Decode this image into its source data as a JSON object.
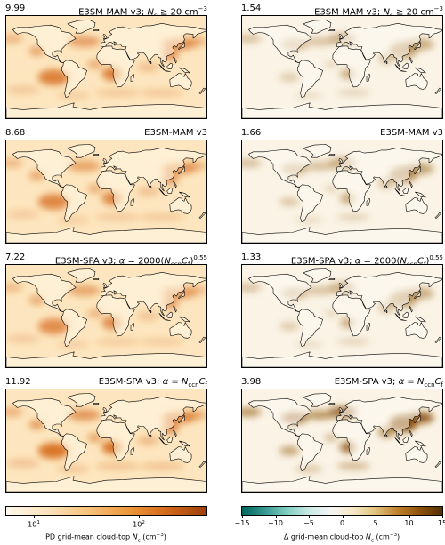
{
  "figure": {
    "panels": [
      {
        "value": "9.99",
        "label": "E3SM-MAM v3; N_c ≥ 20 cm⁻³",
        "column": "left",
        "row": 0,
        "map_type": "absolute",
        "intensity": 0.55
      },
      {
        "value": "1.54",
        "label": "E3SM-MAM v3; N_c ≥ 20 cm⁻³",
        "column": "right",
        "row": 0,
        "map_type": "difference",
        "intensity": 0.25
      },
      {
        "value": "8.68",
        "label": "E3SM-MAM v3",
        "column": "left",
        "row": 1,
        "map_type": "absolute",
        "intensity": 0.5
      },
      {
        "value": "1.66",
        "label": "E3SM-MAM v3",
        "column": "right",
        "row": 1,
        "map_type": "difference",
        "intensity": 0.3
      },
      {
        "value": "7.22",
        "label": "E3SM-SPA v3; α = 2000(N_ccnC_f)^0.55",
        "column": "left",
        "row": 2,
        "map_type": "absolute",
        "intensity": 0.45
      },
      {
        "value": "1.33",
        "label": "E3SM-SPA v3; α = 2000(N_ccnC_f)^0.55",
        "column": "right",
        "row": 2,
        "map_type": "difference",
        "intensity": 0.25
      },
      {
        "value": "11.92",
        "label": "E3SM-SPA v3; α = N_ccnC_f",
        "column": "left",
        "row": 3,
        "map_type": "absolute",
        "intensity": 0.65
      },
      {
        "value": "3.98",
        "label": "E3SM-SPA v3; α = N_ccnC_f",
        "column": "right",
        "row": 3,
        "map_type": "difference",
        "intensity": 0.75
      }
    ],
    "colorbar_left": {
      "label": "PD grid-mean cloud-top N_c (cm⁻³)",
      "scale": "log",
      "ticks": [
        "10¹",
        "10²"
      ],
      "colors": [
        "#fff8ec",
        "#fbe3bd",
        "#f7c47e",
        "#ee9a3e",
        "#d5691a",
        "#9c3f0b"
      ]
    },
    "colorbar_right": {
      "label": "Δ grid-mean cloud-top N_c (cm⁻³)",
      "range": [
        -15,
        15
      ],
      "ticks": [
        "−15",
        "−10",
        "−5",
        "0",
        "5",
        "10",
        "15"
      ],
      "colors": [
        "#01665e",
        "#35978f",
        "#80cdc1",
        "#c7eae5",
        "#f5f5f5",
        "#f6e8c3",
        "#dfc27d",
        "#bf812d",
        "#8c510a",
        "#543005"
      ]
    }
  },
  "chart_data": [
    {
      "type": "heatmap",
      "title": "E3SM-MAM v3; Nc ≥ 20 cm⁻³",
      "value": 9.99
    },
    {
      "type": "heatmap",
      "title": "E3SM-MAM v3; Nc ≥ 20 cm⁻³",
      "value": 1.54
    },
    {
      "type": "heatmap",
      "title": "E3SM-MAM v3",
      "value": 8.68
    },
    {
      "type": "heatmap",
      "title": "E3SM-MAM v3",
      "value": 1.66
    },
    {
      "type": "heatmap",
      "title": "E3SM-SPA v3; α = 2000(NccnCf)^0.55",
      "value": 7.22
    },
    {
      "type": "heatmap",
      "title": "E3SM-SPA v3; α = 2000(NccnCf)^0.55",
      "value": 1.33
    },
    {
      "type": "heatmap",
      "title": "E3SM-SPA v3; α = NccnCf",
      "value": 11.92
    },
    {
      "type": "heatmap",
      "title": "E3SM-SPA v3; α = NccnCf",
      "value": 3.98
    }
  ]
}
